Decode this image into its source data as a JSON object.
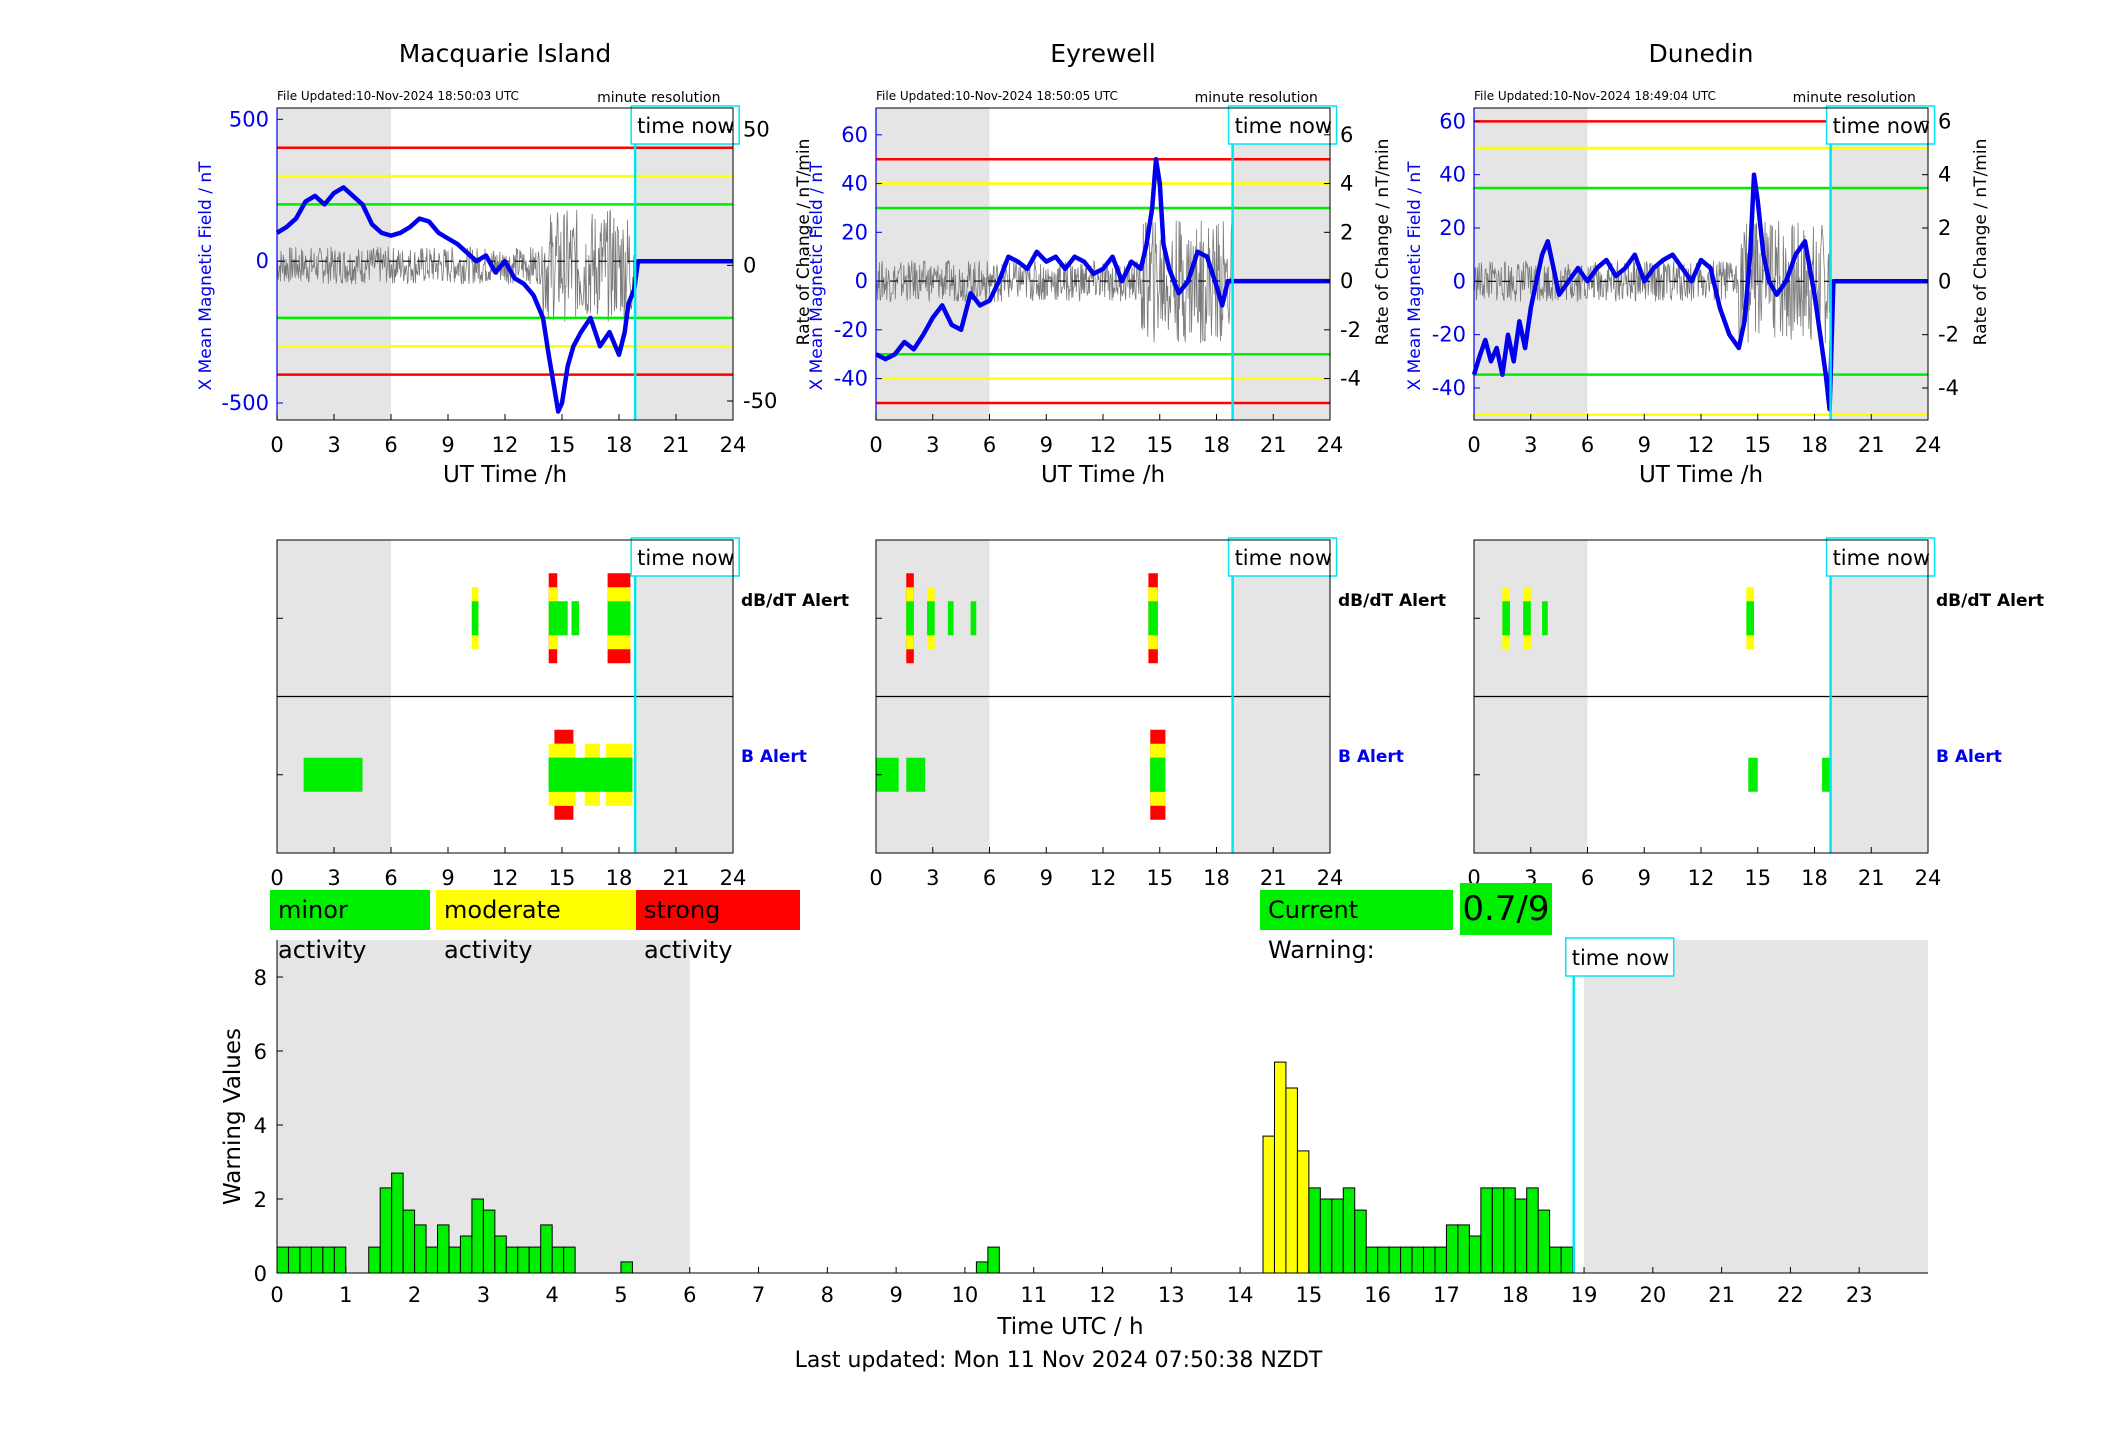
{
  "colors": {
    "minor": "#00ee00",
    "moderate": "#ffff00",
    "strong": "#ff0000",
    "time_now": "#00e5ee",
    "field": "#0000ee",
    "night_shade": "#e5e5e5"
  },
  "time_now_label": "time now",
  "minute_resolution_label": "minute resolution",
  "xlabel_top": "UT Time /h",
  "ylabel_left": "X Mean Magnetic Field / nT",
  "ylabel_right": "Rate of Change / nT/min",
  "alert_labels": {
    "dbdt": "dB/dT Alert",
    "b": "B Alert"
  },
  "legend": {
    "minor": "minor activity",
    "moderate": "moderate activity",
    "strong": "strong activity"
  },
  "current_warning": {
    "label": "Current Warning:",
    "value": "0.7/9"
  },
  "footer": "Last updated: Mon 11 Nov 2024 07:50:38 NZDT",
  "chart_data": [
    {
      "type": "line",
      "title": "Macquarie Island",
      "file_updated": "File Updated:10-Nov-2024 18:50:03 UTC",
      "xlabel": "UT Time /h",
      "xlim": [
        0,
        24
      ],
      "xticks": [
        0,
        3,
        6,
        9,
        12,
        15,
        18,
        21,
        24
      ],
      "ylim_left": [
        -560,
        540
      ],
      "yticks_left": [
        -500,
        0,
        500
      ],
      "ylim_right": [
        -57,
        58
      ],
      "yticks_right": [
        -50,
        0,
        50
      ],
      "thresholds": {
        "green": 200,
        "yellow": 300,
        "red": 400
      },
      "night_shade": [
        [
          0,
          6
        ],
        [
          18.9,
          24
        ]
      ],
      "time_now": 18.85,
      "series": [
        {
          "axis": "left",
          "x": [
            0,
            0.5,
            1,
            1.5,
            2,
            2.5,
            3,
            3.5,
            4,
            4.5,
            5,
            5.5,
            6,
            6.5,
            7,
            7.5,
            8,
            8.5,
            9,
            9.5,
            10,
            10.5,
            11,
            11.5,
            12,
            12.5,
            13,
            13.5,
            14,
            14.3,
            14.6,
            14.8,
            15,
            15.3,
            15.6,
            16,
            16.5,
            17,
            17.5,
            18,
            18.3,
            18.5,
            18.8,
            19,
            24
          ],
          "values": [
            100,
            120,
            150,
            210,
            230,
            200,
            240,
            260,
            230,
            200,
            130,
            100,
            90,
            100,
            120,
            150,
            140,
            100,
            80,
            60,
            30,
            0,
            20,
            -40,
            0,
            -60,
            -80,
            -120,
            -200,
            -330,
            -450,
            -530,
            -500,
            -370,
            -300,
            -250,
            -200,
            -300,
            -250,
            -330,
            -250,
            -150,
            -100,
            0,
            0
          ]
        }
      ]
    },
    {
      "type": "line",
      "title": "Eyrewell",
      "file_updated": "File Updated:10-Nov-2024 18:50:05 UTC",
      "xlabel": "UT Time /h",
      "xlim": [
        0,
        24
      ],
      "xticks": [
        0,
        3,
        6,
        9,
        12,
        15,
        18,
        21,
        24
      ],
      "ylim_left": [
        -57,
        71
      ],
      "yticks_left": [
        -40,
        -20,
        0,
        20,
        40,
        60
      ],
      "ylim_right": [
        -5.7,
        7.1
      ],
      "yticks_right": [
        -4,
        -2,
        0,
        2,
        4,
        6
      ],
      "thresholds": {
        "green": 30,
        "yellow": 40,
        "red": 50
      },
      "night_shade": [
        [
          0,
          6
        ],
        [
          18.9,
          24
        ]
      ],
      "time_now": 18.85,
      "series": [
        {
          "axis": "left",
          "x": [
            0,
            0.5,
            1,
            1.5,
            2,
            2.5,
            3,
            3.5,
            4,
            4.5,
            5,
            5.5,
            6,
            6.5,
            7,
            7.5,
            8,
            8.5,
            9,
            9.5,
            10,
            10.5,
            11,
            11.5,
            12,
            12.5,
            13,
            13.5,
            14,
            14.3,
            14.6,
            14.8,
            15,
            15.2,
            15.5,
            16,
            16.5,
            17,
            17.5,
            18,
            18.3,
            18.6,
            24
          ],
          "values": [
            -30,
            -32,
            -30,
            -25,
            -28,
            -22,
            -15,
            -10,
            -18,
            -20,
            -5,
            -10,
            -8,
            0,
            10,
            8,
            5,
            12,
            8,
            10,
            5,
            10,
            8,
            3,
            5,
            10,
            0,
            8,
            5,
            15,
            30,
            50,
            40,
            15,
            5,
            -5,
            0,
            12,
            10,
            -2,
            -10,
            0,
            0
          ]
        }
      ]
    },
    {
      "type": "line",
      "title": "Dunedin",
      "file_updated": "File Updated:10-Nov-2024 18:49:04 UTC",
      "xlabel": "UT Time /h",
      "xlim": [
        0,
        24
      ],
      "xticks": [
        0,
        3,
        6,
        9,
        12,
        15,
        18,
        21,
        24
      ],
      "ylim_left": [
        -52,
        65
      ],
      "yticks_left": [
        -40,
        -20,
        0,
        20,
        40,
        60
      ],
      "ylim_right": [
        -5.2,
        6.5
      ],
      "yticks_right": [
        -4,
        -2,
        0,
        2,
        4,
        6
      ],
      "thresholds": {
        "green": 35,
        "yellow": 50,
        "red": 60
      },
      "night_shade": [
        [
          0,
          6
        ],
        [
          18.9,
          24
        ]
      ],
      "time_now": 18.85,
      "series": [
        {
          "axis": "left",
          "x": [
            0,
            0.3,
            0.6,
            0.9,
            1.2,
            1.5,
            1.8,
            2.1,
            2.4,
            2.7,
            3,
            3.3,
            3.6,
            3.9,
            4.2,
            4.5,
            5,
            5.5,
            6,
            6.5,
            7,
            7.5,
            8,
            8.5,
            9,
            9.5,
            10,
            10.5,
            11,
            11.5,
            12,
            12.5,
            13,
            13.5,
            14,
            14.3,
            14.6,
            14.8,
            15,
            15.3,
            15.6,
            16,
            16.5,
            17,
            17.5,
            18,
            18.3,
            18.6,
            18.8,
            19,
            24
          ],
          "values": [
            -35,
            -28,
            -22,
            -30,
            -25,
            -35,
            -20,
            -30,
            -15,
            -25,
            -10,
            0,
            10,
            15,
            5,
            -5,
            0,
            5,
            0,
            5,
            8,
            2,
            5,
            10,
            0,
            5,
            8,
            10,
            5,
            0,
            8,
            5,
            -10,
            -20,
            -25,
            -15,
            10,
            40,
            30,
            10,
            0,
            -5,
            0,
            10,
            15,
            -5,
            -20,
            -35,
            -48,
            0,
            0
          ]
        }
      ]
    },
    {
      "type": "bar",
      "role": "alert-strip",
      "station": "Macquarie Island",
      "xlim": [
        0,
        24
      ],
      "xticks": [
        0,
        3,
        6,
        9,
        12,
        15,
        18,
        21,
        24
      ],
      "night_shade": [
        [
          0,
          6
        ],
        [
          18.9,
          24
        ]
      ],
      "time_now": 18.85,
      "dbdt_alerts": [
        {
          "start": 10.25,
          "end": 10.6,
          "level": 2
        },
        {
          "start": 14.3,
          "end": 14.75,
          "level": 3
        },
        {
          "start": 14.75,
          "end": 15.3,
          "level": 1
        },
        {
          "start": 15.5,
          "end": 15.9,
          "level": 1
        },
        {
          "start": 17.4,
          "end": 18.6,
          "level": 3
        }
      ],
      "b_alerts": [
        {
          "start": 1.4,
          "end": 4.5,
          "level": 1
        },
        {
          "start": 14.3,
          "end": 15.7,
          "level": 2
        },
        {
          "start": 14.6,
          "end": 15.6,
          "level": 3
        },
        {
          "start": 16.2,
          "end": 17.0,
          "level": 2
        },
        {
          "start": 17.3,
          "end": 18.7,
          "level": 2
        },
        {
          "start": 14.3,
          "end": 18.7,
          "level": 1
        }
      ]
    },
    {
      "type": "bar",
      "role": "alert-strip",
      "station": "Eyrewell",
      "xlim": [
        0,
        24
      ],
      "xticks": [
        0,
        3,
        6,
        9,
        12,
        15,
        18,
        21,
        24
      ],
      "night_shade": [
        [
          0,
          6
        ],
        [
          18.9,
          24
        ]
      ],
      "time_now": 18.85,
      "dbdt_alerts": [
        {
          "start": 1.6,
          "end": 2.0,
          "level": 3
        },
        {
          "start": 2.7,
          "end": 3.1,
          "level": 2
        },
        {
          "start": 3.8,
          "end": 4.1,
          "level": 1
        },
        {
          "start": 5.0,
          "end": 5.3,
          "level": 1
        },
        {
          "start": 14.4,
          "end": 14.9,
          "level": 3
        }
      ],
      "b_alerts": [
        {
          "start": 0.0,
          "end": 1.2,
          "level": 1
        },
        {
          "start": 1.6,
          "end": 2.6,
          "level": 1
        },
        {
          "start": 14.5,
          "end": 15.3,
          "level": 3
        },
        {
          "start": 14.5,
          "end": 15.3,
          "level": 1
        }
      ]
    },
    {
      "type": "bar",
      "role": "alert-strip",
      "station": "Dunedin",
      "xlim": [
        0,
        24
      ],
      "xticks": [
        0,
        3,
        6,
        9,
        12,
        15,
        18,
        21,
        24
      ],
      "night_shade": [
        [
          0,
          6
        ],
        [
          18.9,
          24
        ]
      ],
      "time_now": 18.85,
      "dbdt_alerts": [
        {
          "start": 1.5,
          "end": 1.9,
          "level": 2
        },
        {
          "start": 2.6,
          "end": 3.0,
          "level": 2
        },
        {
          "start": 3.6,
          "end": 3.9,
          "level": 1
        },
        {
          "start": 14.4,
          "end": 14.8,
          "level": 2
        }
      ],
      "b_alerts": [
        {
          "start": 14.5,
          "end": 15.0,
          "level": 1
        },
        {
          "start": 18.4,
          "end": 18.9,
          "level": 1
        }
      ]
    },
    {
      "type": "bar",
      "role": "warning-history",
      "xlabel": "Time UTC / h",
      "ylabel": "Warning Values",
      "xlim": [
        0,
        24
      ],
      "ylim": [
        0,
        9
      ],
      "xticks": [
        0,
        1,
        2,
        3,
        4,
        5,
        6,
        7,
        8,
        9,
        10,
        11,
        12,
        13,
        14,
        15,
        16,
        17,
        18,
        19,
        20,
        21,
        22,
        23
      ],
      "yticks": [
        0,
        2,
        4,
        6,
        8
      ],
      "night_shade": [
        [
          0,
          6
        ],
        [
          19,
          24
        ]
      ],
      "time_now": 18.85,
      "bar_width": 0.1667,
      "moderate_from": 4.5,
      "x": [
        0,
        0.1667,
        0.3333,
        0.5,
        0.6667,
        0.8333,
        1.3333,
        1.5,
        1.6667,
        1.8333,
        2.0,
        2.1667,
        2.3333,
        2.5,
        2.6667,
        2.8333,
        3.0,
        3.1667,
        3.3333,
        3.5,
        3.6667,
        3.8333,
        4.0,
        4.1667,
        5.0,
        10.1667,
        10.3333,
        14.3333,
        14.5,
        14.6667,
        14.8333,
        15.0,
        15.1667,
        15.3333,
        15.5,
        15.6667,
        15.8333,
        16.0,
        16.1667,
        16.3333,
        16.5,
        16.6667,
        16.8333,
        17.0,
        17.1667,
        17.3333,
        17.5,
        17.6667,
        17.8333,
        18.0,
        18.1667,
        18.3333,
        18.5,
        18.6667
      ],
      "values": [
        0.7,
        0.7,
        0.7,
        0.7,
        0.7,
        0.7,
        0.7,
        2.3,
        2.7,
        1.7,
        1.3,
        0.7,
        1.3,
        0.7,
        1.0,
        2.0,
        1.7,
        1.0,
        0.7,
        0.7,
        0.7,
        1.3,
        0.7,
        0.7,
        0.3,
        0.3,
        0.7,
        3.7,
        5.7,
        5.0,
        3.3,
        2.3,
        2.0,
        2.0,
        2.3,
        1.7,
        0.7,
        0.7,
        0.7,
        0.7,
        0.7,
        0.7,
        0.7,
        1.3,
        1.3,
        1.0,
        2.3,
        2.3,
        2.3,
        2.0,
        2.3,
        1.7,
        0.7,
        0.7
      ]
    }
  ]
}
